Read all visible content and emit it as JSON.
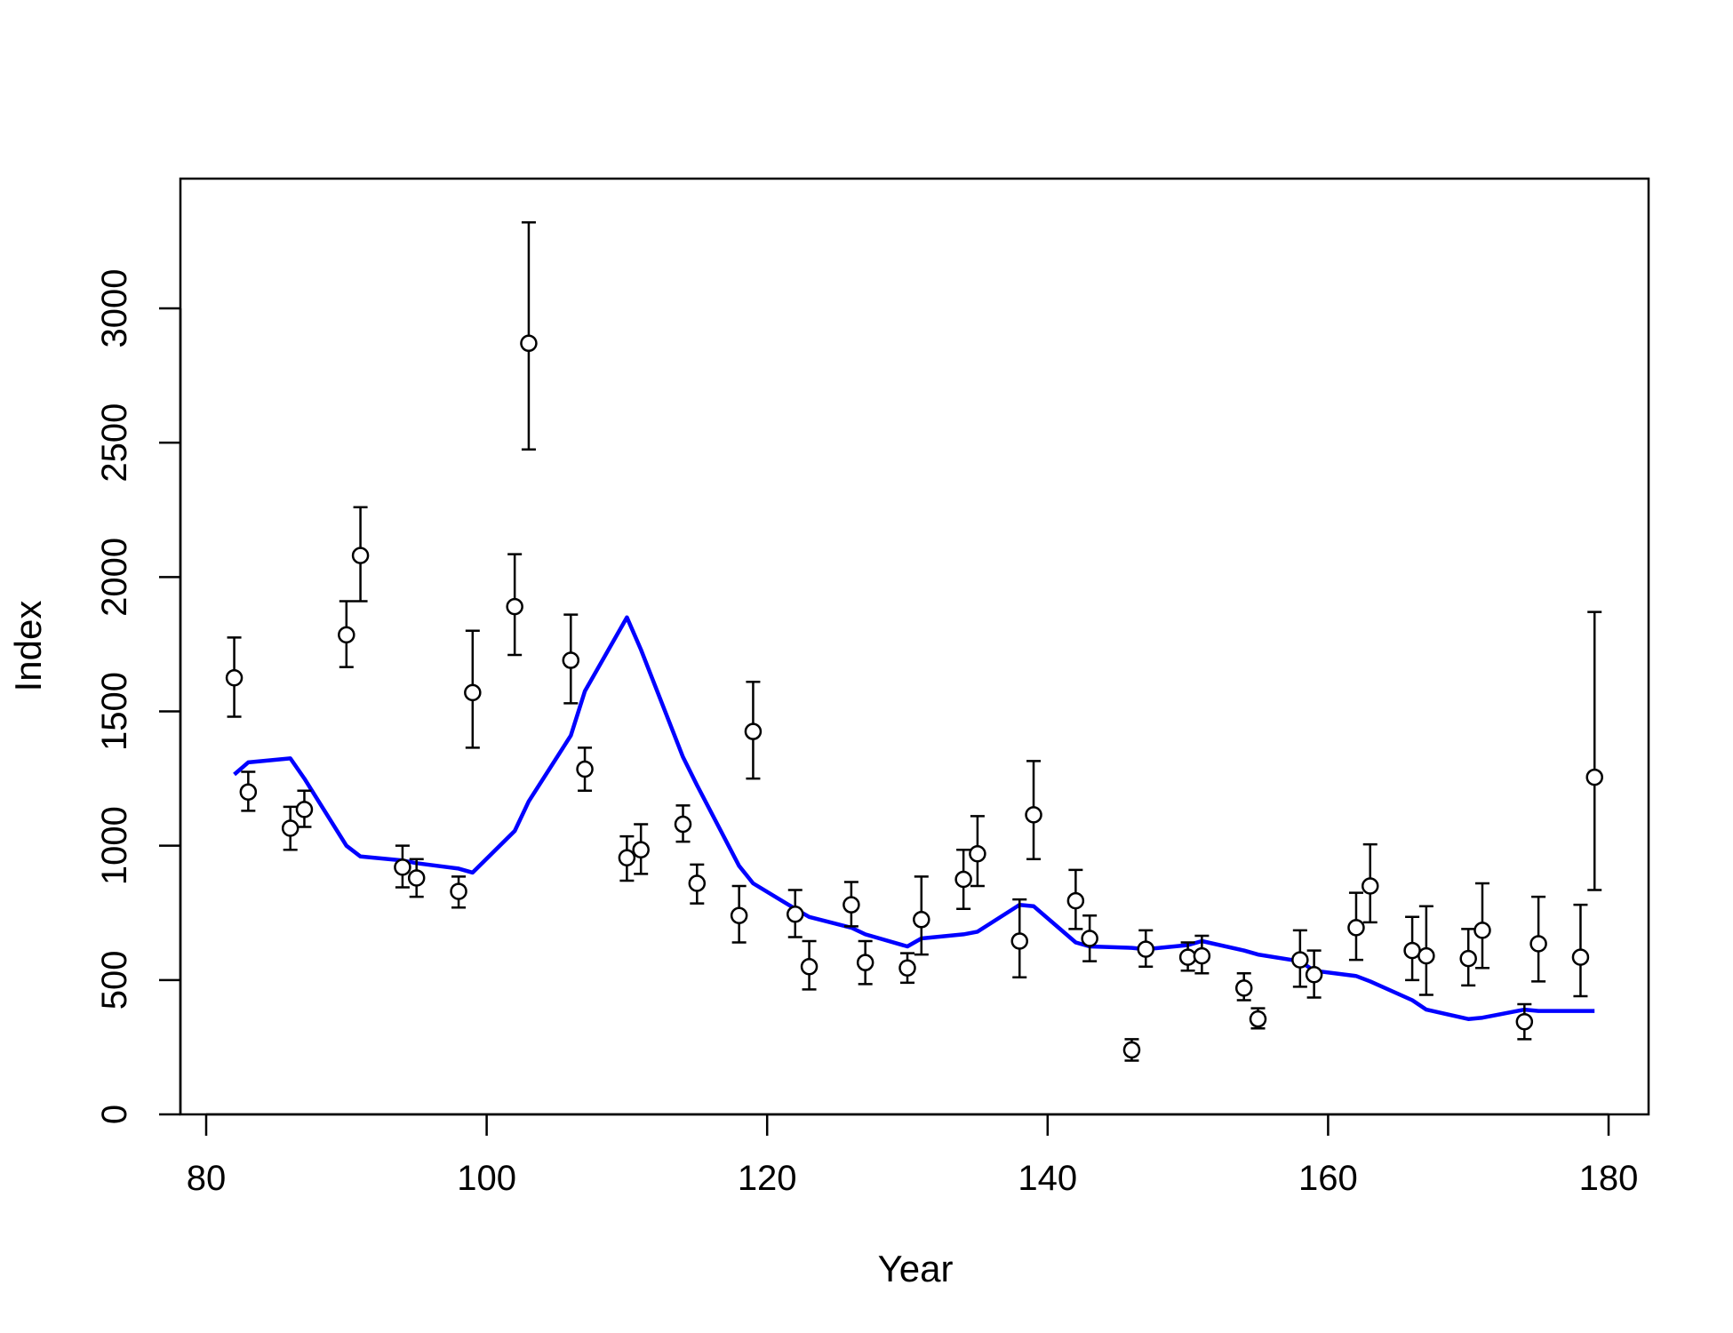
{
  "chart_data": {
    "type": "scatter",
    "title": "",
    "xlabel": "Year",
    "ylabel": "Index",
    "xlim": [
      78,
      183
    ],
    "ylim": [
      0,
      3500
    ],
    "xticks": [
      80,
      100,
      120,
      140,
      160,
      180
    ],
    "yticks": [
      0,
      500,
      1000,
      1500,
      2000,
      2500,
      3000
    ],
    "grid": false,
    "colors": {
      "observed": "#000000",
      "fitted": "#0000ff"
    },
    "observed": {
      "x": [
        82,
        83,
        86,
        87,
        90,
        91,
        94,
        95,
        98,
        99,
        102,
        103,
        106,
        107,
        110,
        111,
        114,
        115,
        118,
        119,
        122,
        123,
        126,
        127,
        130,
        131,
        134,
        135,
        138,
        139,
        142,
        143,
        146,
        147,
        150,
        151,
        154,
        155,
        158,
        159,
        162,
        163,
        166,
        167,
        170,
        171,
        174,
        175,
        178,
        179
      ],
      "y": [
        1625,
        1200,
        1065,
        1135,
        1785,
        2080,
        920,
        880,
        830,
        1570,
        1890,
        2870,
        1690,
        1285,
        955,
        985,
        1080,
        860,
        740,
        1425,
        745,
        550,
        780,
        565,
        545,
        725,
        875,
        970,
        645,
        1115,
        795,
        655,
        240,
        615,
        585,
        590,
        470,
        355,
        575,
        520,
        695,
        850,
        610,
        590,
        580,
        685,
        345,
        635,
        585,
        1255
      ],
      "lower": [
        1480,
        1130,
        985,
        1070,
        1665,
        1910,
        845,
        810,
        770,
        1365,
        1710,
        2475,
        1530,
        1205,
        870,
        895,
        1015,
        785,
        640,
        1250,
        660,
        465,
        700,
        485,
        490,
        595,
        765,
        850,
        510,
        950,
        690,
        570,
        200,
        550,
        535,
        525,
        425,
        320,
        475,
        435,
        575,
        715,
        500,
        445,
        480,
        545,
        280,
        495,
        440,
        835
      ],
      "upper": [
        1775,
        1275,
        1145,
        1205,
        1910,
        2260,
        1000,
        950,
        885,
        1800,
        2085,
        3320,
        1860,
        1365,
        1035,
        1080,
        1150,
        930,
        850,
        1610,
        835,
        645,
        865,
        645,
        600,
        885,
        985,
        1110,
        800,
        1315,
        910,
        740,
        280,
        685,
        640,
        665,
        525,
        395,
        685,
        610,
        825,
        1005,
        735,
        775,
        690,
        860,
        410,
        810,
        780,
        1870
      ]
    },
    "fitted": {
      "x": [
        82,
        83,
        86,
        87,
        90,
        91,
        94,
        95,
        98,
        99,
        102,
        103,
        106,
        107,
        110,
        111,
        114,
        115,
        118,
        119,
        122,
        123,
        126,
        127,
        130,
        131,
        134,
        135,
        138,
        139,
        142,
        143,
        146,
        147,
        150,
        151,
        154,
        155,
        158,
        159,
        162,
        163,
        166,
        167,
        170,
        171,
        174,
        175,
        178,
        179
      ],
      "y": [
        1265,
        1310,
        1325,
        1250,
        1000,
        960,
        945,
        935,
        915,
        900,
        1055,
        1165,
        1410,
        1575,
        1850,
        1730,
        1330,
        1225,
        925,
        860,
        765,
        735,
        695,
        670,
        625,
        655,
        670,
        680,
        780,
        775,
        640,
        625,
        620,
        615,
        630,
        645,
        610,
        595,
        570,
        535,
        515,
        495,
        425,
        390,
        355,
        360,
        390,
        385,
        385,
        385
      ]
    }
  }
}
